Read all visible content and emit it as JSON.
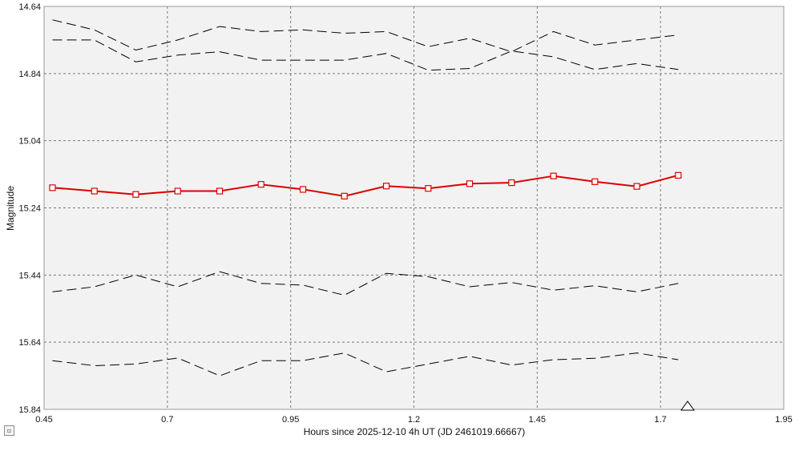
{
  "chart_data": {
    "type": "line",
    "title": "",
    "xlabel": "Hours since 2025-12-10 4h UT (JD 2461019.66667)",
    "ylabel": "Magnitude",
    "xlim": [
      0.45,
      1.95
    ],
    "ylim": [
      14.64,
      15.84
    ],
    "y_inverted": false,
    "grid": true,
    "x_ticks": [
      0.45,
      0.7,
      0.95,
      1.2,
      1.45,
      1.7,
      1.95
    ],
    "x_tick_labels": [
      "0.45",
      "0.7",
      "0.95",
      "1.2",
      "1.45",
      "1.7",
      "1.95"
    ],
    "y_ticks": [
      14.64,
      14.84,
      15.04,
      15.24,
      15.44,
      15.64,
      15.84
    ],
    "y_tick_labels": [
      "14.64",
      "14.84",
      "15.04",
      "15.24",
      "15.44",
      "15.64",
      "15.84"
    ],
    "x": [
      0.467,
      0.552,
      0.636,
      0.721,
      0.806,
      0.89,
      0.975,
      1.059,
      1.144,
      1.229,
      1.313,
      1.398,
      1.483,
      1.567,
      1.652,
      1.736
    ],
    "series": [
      {
        "name": "",
        "style": "solid-markers",
        "color": "#dd0000",
        "values": [
          15.18,
          15.19,
          15.2,
          15.19,
          15.19,
          15.17,
          15.185,
          15.205,
          15.175,
          15.182,
          15.168,
          15.165,
          15.145,
          15.162,
          15.176,
          15.143
        ]
      },
      {
        "name": "",
        "style": "dashed",
        "color": "#000000",
        "values": [
          14.68,
          14.71,
          14.77,
          14.74,
          14.7,
          14.715,
          14.71,
          14.72,
          14.715,
          14.76,
          14.735,
          14.775,
          14.715,
          14.755,
          14.74,
          14.725
        ]
      },
      {
        "name": "",
        "style": "dashed",
        "color": "#000000",
        "values": [
          14.74,
          14.74,
          14.805,
          14.785,
          14.775,
          14.8,
          14.8,
          14.8,
          14.78,
          14.83,
          14.825,
          14.773,
          14.79,
          14.828,
          14.81,
          14.828
        ]
      },
      {
        "name": "",
        "style": "dashed",
        "color": "#000000",
        "values": [
          15.49,
          15.475,
          15.44,
          15.475,
          15.43,
          15.465,
          15.47,
          15.5,
          15.435,
          15.445,
          15.475,
          15.462,
          15.485,
          15.472,
          15.49,
          15.465
        ]
      },
      {
        "name": "",
        "style": "dashed",
        "color": "#000000",
        "values": [
          15.695,
          15.71,
          15.705,
          15.687,
          15.74,
          15.695,
          15.695,
          15.672,
          15.728,
          15.705,
          15.682,
          15.708,
          15.692,
          15.688,
          15.672,
          15.692
        ]
      }
    ],
    "marker_triangle_x": 1.755
  },
  "ui": {
    "corner_button": "▫"
  }
}
